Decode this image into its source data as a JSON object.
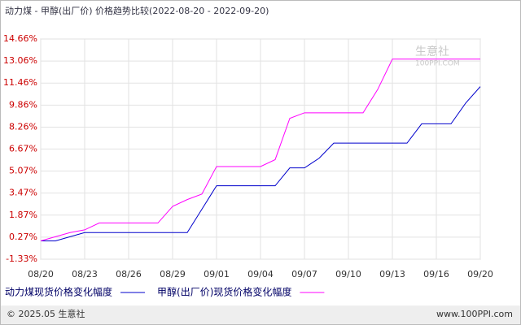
{
  "chart_data": {
    "type": "line",
    "title": "动力煤 - 甲醇(出厂价) 价格趋势比较(2022-08-20 - 2022-09-20)",
    "categories": [
      "08/20",
      null,
      null,
      "08/23",
      null,
      null,
      "08/26",
      null,
      null,
      "08/29",
      null,
      null,
      "09/01",
      null,
      null,
      "09/04",
      null,
      null,
      "09/07",
      null,
      null,
      "09/10",
      null,
      null,
      "09/13",
      null,
      null,
      "09/16",
      null,
      null,
      "09/20"
    ],
    "series": [
      {
        "name": "动力煤现货价格变化幅度",
        "color": "#0000cc",
        "values": [
          0,
          0,
          0.3,
          0.6,
          0.6,
          0.6,
          0.6,
          0.6,
          0.6,
          0.6,
          0.6,
          2.3,
          4.0,
          4.0,
          4.0,
          4.0,
          4.0,
          5.3,
          5.3,
          6.0,
          7.1,
          7.1,
          7.1,
          7.1,
          7.1,
          7.1,
          8.5,
          8.5,
          8.5,
          10.0,
          11.2
        ]
      },
      {
        "name": "甲醇(出厂价)现货价格变化幅度",
        "color": "#ff00ff",
        "values": [
          0,
          0.3,
          0.6,
          0.8,
          1.3,
          1.3,
          1.3,
          1.3,
          1.3,
          2.5,
          3.0,
          3.4,
          5.4,
          5.4,
          5.4,
          5.4,
          5.9,
          8.9,
          9.3,
          9.3,
          9.3,
          9.3,
          9.3,
          11.0,
          13.2,
          13.2,
          13.2,
          13.2,
          13.2,
          13.2,
          13.2
        ]
      }
    ],
    "ylim": [
      -1.33,
      14.66
    ],
    "yticks": [
      {
        "value": -1.33,
        "label": "-1.33%"
      },
      {
        "value": 0.27,
        "label": "0.27%"
      },
      {
        "value": 1.87,
        "label": "1.87%"
      },
      {
        "value": 3.47,
        "label": "3.47%"
      },
      {
        "value": 5.07,
        "label": "5.07%"
      },
      {
        "value": 6.67,
        "label": "6.67%"
      },
      {
        "value": 8.26,
        "label": "8.26%"
      },
      {
        "value": 9.86,
        "label": "9.86%"
      },
      {
        "value": 11.46,
        "label": "11.46%"
      },
      {
        "value": 13.06,
        "label": "13.06%"
      },
      {
        "value": 14.66,
        "label": "14.66%"
      }
    ],
    "grid": true,
    "watermark": [
      "生意社",
      "100PPI.COM"
    ]
  },
  "footer": {
    "copyright": "© 2025.05 生意社",
    "website": "www.100PPI.com"
  }
}
